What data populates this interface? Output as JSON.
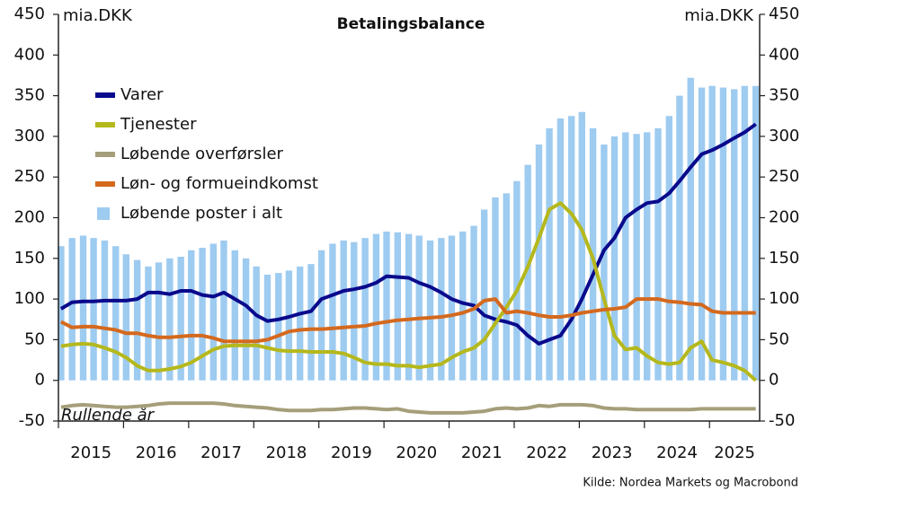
{
  "chart_data": {
    "type": "combo",
    "title": "Betalingsbalance",
    "y_label": "mia.DKK",
    "y2_label": "mia.DKK",
    "annotation": "Rullende år",
    "source": "Kilde: Nordea Markets og Macrobond",
    "xlim": [
      2015,
      2025.77
    ],
    "xticks": [
      2015,
      2016,
      2017,
      2018,
      2019,
      2020,
      2021,
      2022,
      2023,
      2024,
      2025
    ],
    "ylim": [
      -50,
      450
    ],
    "yticks": [
      -50,
      0,
      50,
      100,
      150,
      200,
      250,
      300,
      350,
      400,
      450
    ],
    "y2lim": [
      -50,
      450
    ],
    "y2ticks": [
      -50,
      0,
      50,
      100,
      150,
      200,
      250,
      300,
      350,
      400,
      450
    ],
    "x": [
      2015.04,
      2015.21,
      2015.38,
      2015.54,
      2015.71,
      2015.88,
      2016.04,
      2016.21,
      2016.38,
      2016.54,
      2016.71,
      2016.88,
      2017.04,
      2017.21,
      2017.38,
      2017.54,
      2017.71,
      2017.88,
      2018.04,
      2018.21,
      2018.38,
      2018.54,
      2018.71,
      2018.88,
      2019.04,
      2019.21,
      2019.38,
      2019.54,
      2019.71,
      2019.88,
      2020.04,
      2020.21,
      2020.38,
      2020.54,
      2020.71,
      2020.88,
      2021.04,
      2021.21,
      2021.38,
      2021.54,
      2021.71,
      2021.88,
      2022.04,
      2022.21,
      2022.38,
      2022.54,
      2022.71,
      2022.88,
      2023.04,
      2023.21,
      2023.38,
      2023.54,
      2023.71,
      2023.88,
      2024.04,
      2024.21,
      2024.38,
      2024.54,
      2024.71,
      2024.88,
      2025.04,
      2025.21,
      2025.38,
      2025.54,
      2025.71
    ],
    "series": [
      {
        "name": "Løbende poster i alt",
        "type": "bar",
        "color": "#9ecbf0",
        "values": [
          165,
          175,
          178,
          175,
          172,
          165,
          155,
          148,
          140,
          145,
          150,
          152,
          160,
          163,
          168,
          172,
          160,
          150,
          140,
          130,
          132,
          135,
          140,
          143,
          160,
          168,
          172,
          170,
          175,
          180,
          183,
          182,
          180,
          178,
          172,
          175,
          178,
          183,
          190,
          210,
          225,
          230,
          245,
          265,
          290,
          310,
          322,
          325,
          330,
          310,
          290,
          300,
          305,
          303,
          305,
          310,
          325,
          350,
          372,
          360,
          362,
          360,
          358,
          362,
          362
        ]
      },
      {
        "name": "Varer",
        "type": "line",
        "color": "#0a0a8c",
        "values": [
          88,
          96,
          97,
          97,
          98,
          98,
          98,
          100,
          108,
          108,
          106,
          110,
          110,
          105,
          103,
          108,
          100,
          92,
          80,
          73,
          75,
          78,
          82,
          85,
          100,
          105,
          110,
          112,
          115,
          120,
          128,
          127,
          126,
          120,
          115,
          108,
          100,
          95,
          92,
          80,
          75,
          72,
          68,
          55,
          45,
          50,
          55,
          75,
          100,
          130,
          160,
          175,
          200,
          210,
          218,
          220,
          230,
          245,
          262,
          278,
          283,
          290,
          298,
          305,
          315
        ]
      },
      {
        "name": "Tjenester",
        "type": "line",
        "color": "#b5b81c",
        "values": [
          42,
          44,
          45,
          44,
          40,
          35,
          28,
          18,
          12,
          12,
          14,
          17,
          22,
          30,
          38,
          42,
          43,
          43,
          43,
          40,
          37,
          36,
          36,
          35,
          35,
          35,
          33,
          28,
          22,
          20,
          20,
          18,
          18,
          16,
          18,
          20,
          28,
          35,
          40,
          50,
          70,
          90,
          110,
          140,
          175,
          210,
          218,
          205,
          185,
          150,
          100,
          55,
          38,
          40,
          30,
          22,
          20,
          22,
          40,
          48,
          25,
          22,
          18,
          12,
          0
        ]
      },
      {
        "name": "Løbende overførsler",
        "type": "line",
        "color": "#a59e7a",
        "values": [
          -33,
          -31,
          -30,
          -31,
          -32,
          -33,
          -33,
          -32,
          -31,
          -29,
          -28,
          -28,
          -28,
          -28,
          -28,
          -29,
          -31,
          -32,
          -33,
          -34,
          -36,
          -37,
          -37,
          -37,
          -36,
          -36,
          -35,
          -34,
          -34,
          -35,
          -36,
          -35,
          -38,
          -39,
          -40,
          -40,
          -40,
          -40,
          -39,
          -38,
          -35,
          -34,
          -35,
          -34,
          -31,
          -32,
          -30,
          -30,
          -30,
          -31,
          -34,
          -35,
          -35,
          -36,
          -36,
          -36,
          -36,
          -36,
          -36,
          -35,
          -35,
          -35,
          -35,
          -35,
          -35
        ]
      },
      {
        "name": "Løn- og formueindkomst",
        "type": "line",
        "color": "#d4691e",
        "values": [
          72,
          65,
          66,
          66,
          64,
          62,
          58,
          58,
          55,
          53,
          53,
          54,
          55,
          55,
          52,
          48,
          48,
          48,
          48,
          50,
          55,
          60,
          62,
          63,
          63,
          64,
          65,
          66,
          67,
          70,
          72,
          74,
          75,
          76,
          77,
          78,
          80,
          83,
          88,
          98,
          100,
          83,
          85,
          83,
          80,
          78,
          78,
          80,
          83,
          85,
          87,
          88,
          90,
          100,
          100,
          100,
          97,
          96,
          94,
          93,
          85,
          83,
          83,
          83,
          83
        ]
      }
    ],
    "legend_order": [
      1,
      2,
      3,
      4,
      0
    ]
  }
}
